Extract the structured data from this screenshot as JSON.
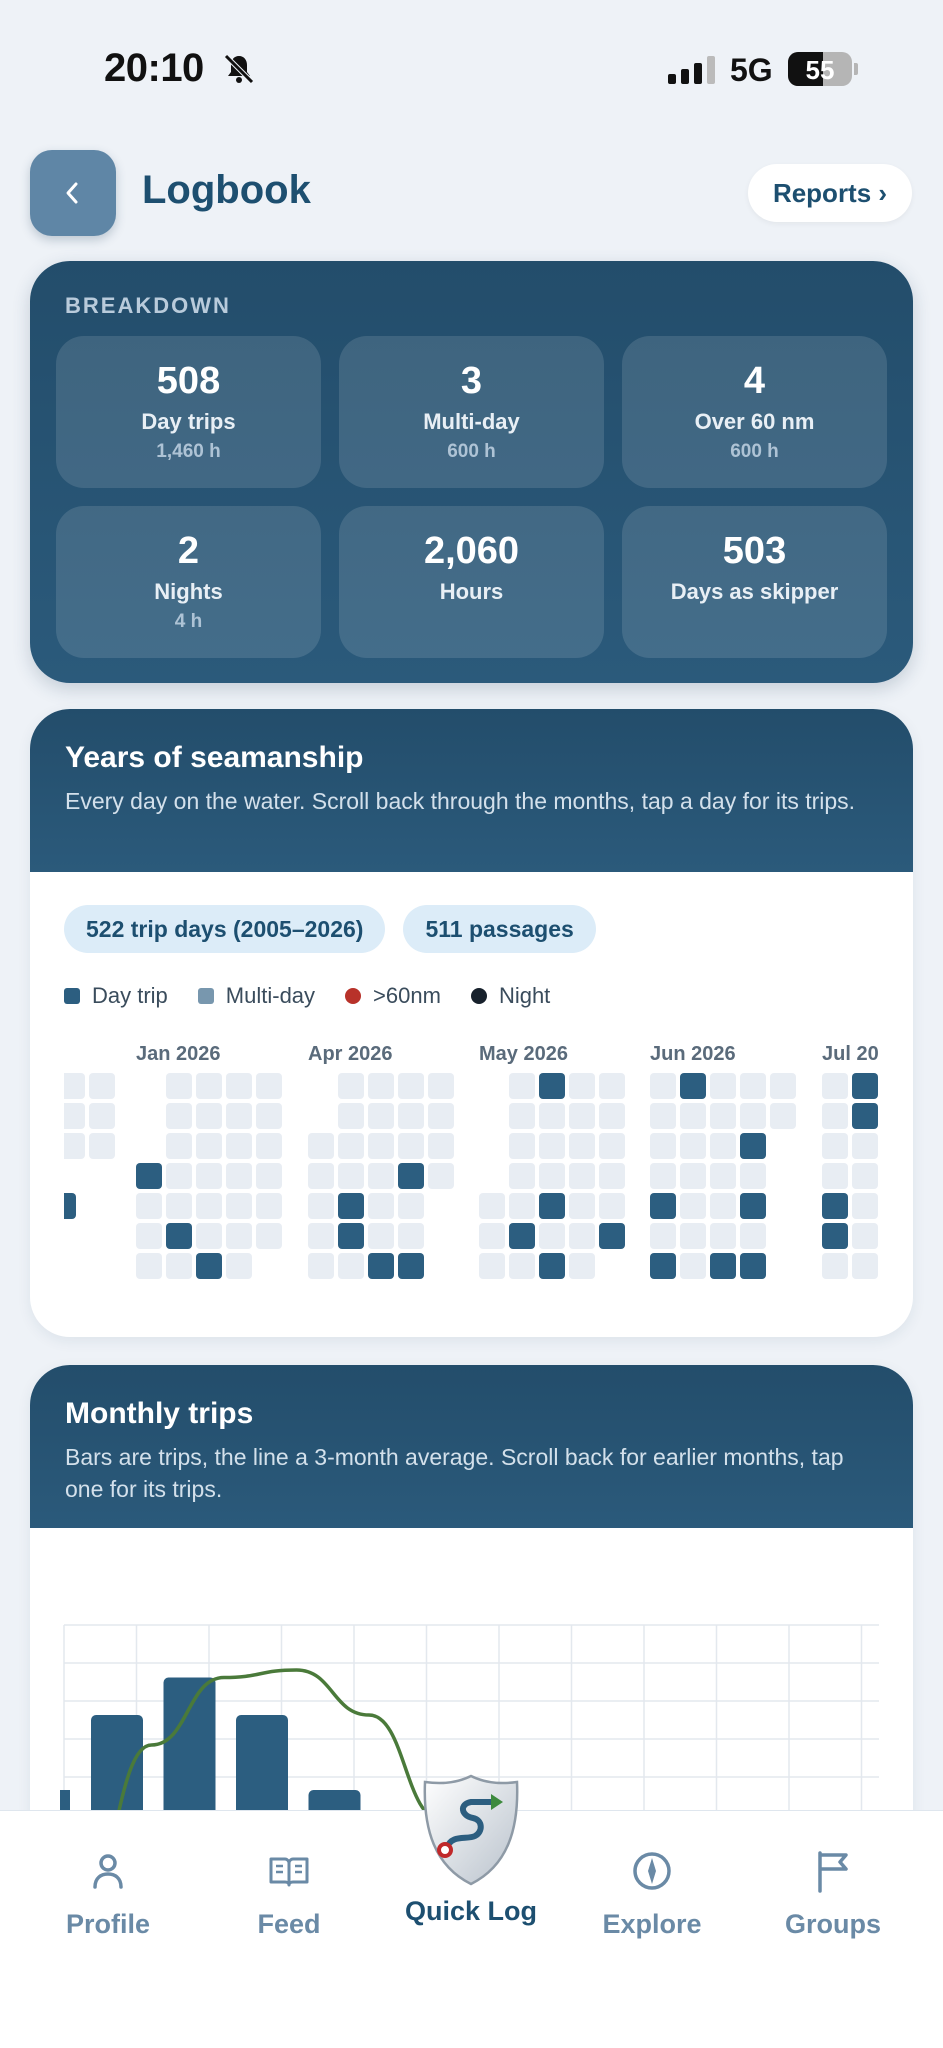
{
  "status_bar": {
    "time": "20:10",
    "network": "5G",
    "battery": "55",
    "icons": [
      "bell-slash-icon",
      "signal-icon",
      "battery-icon"
    ]
  },
  "header": {
    "title": "Logbook",
    "reports_label": "Reports ›",
    "back_icon": "chevron-left-icon"
  },
  "breakdown": {
    "label": "BREAKDOWN",
    "tiles": [
      {
        "value": "508",
        "label": "Day trips",
        "sub": "1,460 h"
      },
      {
        "value": "3",
        "label": "Multi-day",
        "sub": "600 h"
      },
      {
        "value": "4",
        "label": "Over 60 nm",
        "sub": "600 h"
      },
      {
        "value": "2",
        "label": "Nights",
        "sub": "4 h"
      },
      {
        "value": "2,060",
        "label": "Hours",
        "sub": ""
      },
      {
        "value": "503",
        "label": "Days as skipper",
        "sub": ""
      }
    ]
  },
  "seamanship": {
    "title": "Years of seamanship",
    "subtitle": "Every day on the water. Scroll back through the months, tap a day for its trips.",
    "chips": [
      "522 trip days (2005–2026)",
      "511 passages"
    ],
    "legend": [
      {
        "label": "Day trip",
        "color": "#2c5e80",
        "shape": "square"
      },
      {
        "label": "Multi-day",
        "color": "#7897ae",
        "shape": "square"
      },
      {
        "label": ">60nm",
        "color": "#b8322a",
        "shape": "dot"
      },
      {
        "label": "Night",
        "color": "#17212c",
        "shape": "dot"
      }
    ],
    "months": [
      "Jan 2026",
      "Apr 2026",
      "May 2026",
      "Jun 2026",
      "Jul 20"
    ]
  },
  "monthly": {
    "title": "Monthly trips",
    "subtitle": "Bars are trips, the line a 3-month average. Scroll back for earlier months, tap one for its trips."
  },
  "chart_data": {
    "type": "bar",
    "title": "Monthly trips",
    "series": [
      {
        "values": [
          28,
          33,
          28,
          18,
          8
        ]
      },
      {
        "type": "line",
        "values": [
          2,
          24,
          33,
          34,
          28,
          14
        ]
      }
    ],
    "grid": true,
    "colors": {
      "bars": "#2c5e80",
      "line": "#4a7a3a"
    }
  },
  "nav": {
    "items": [
      {
        "label": "Profile",
        "icon": "profile-icon"
      },
      {
        "label": "Feed",
        "icon": "book-icon"
      },
      {
        "label": "Quick Log",
        "icon": "shield-route-icon"
      },
      {
        "label": "Explore",
        "icon": "compass-icon"
      },
      {
        "label": "Groups",
        "icon": "flag-icon"
      }
    ]
  }
}
